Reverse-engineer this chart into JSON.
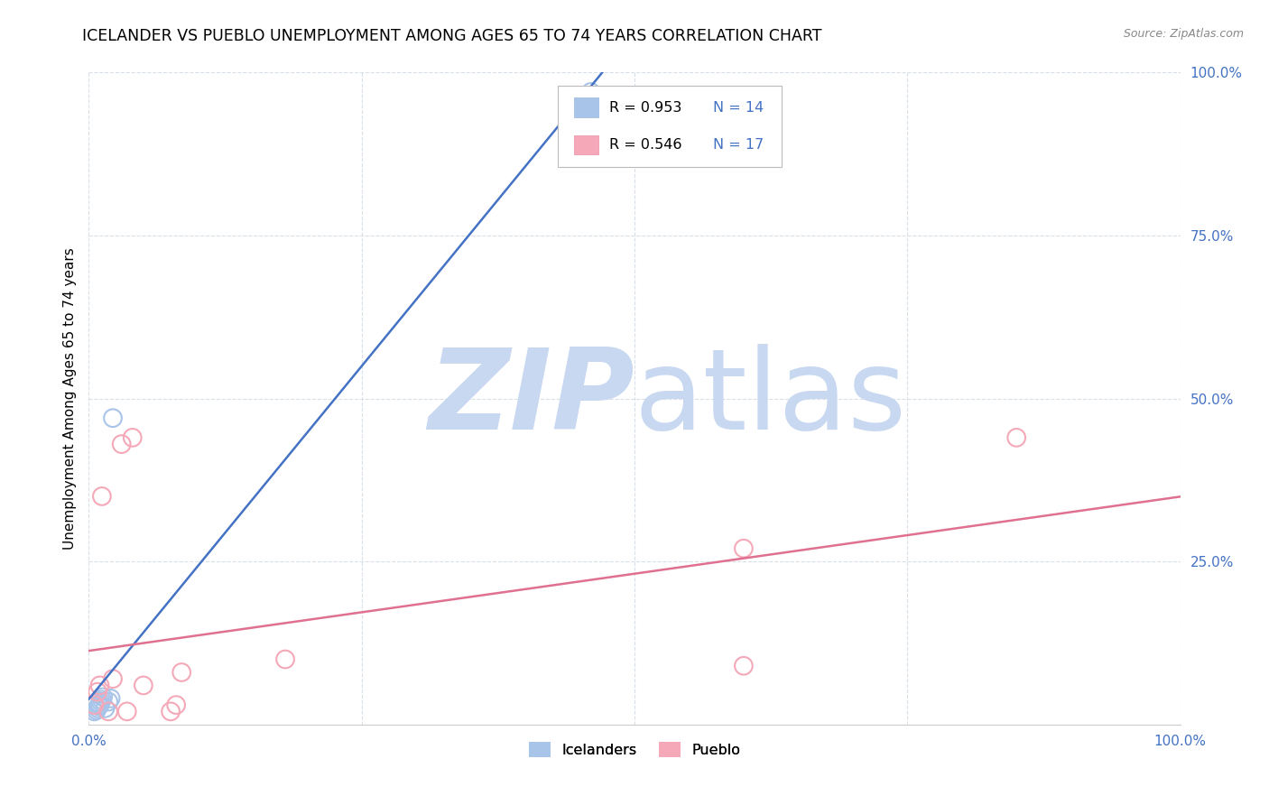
{
  "title": "ICELANDER VS PUEBLO UNEMPLOYMENT AMONG AGES 65 TO 74 YEARS CORRELATION CHART",
  "source": "Source: ZipAtlas.com",
  "ylabel": "Unemployment Among Ages 65 to 74 years",
  "xlim": [
    0.0,
    1.0
  ],
  "ylim": [
    0.0,
    1.0
  ],
  "xticks": [
    0.0,
    0.25,
    0.5,
    0.75,
    1.0
  ],
  "yticks": [
    0.0,
    0.25,
    0.5,
    0.75,
    1.0
  ],
  "xticklabels": [
    "0.0%",
    "",
    "",
    "",
    "100.0%"
  ],
  "yticklabels": [
    "",
    "25.0%",
    "50.0%",
    "75.0%",
    "100.0%"
  ],
  "icelander_color": "#a8c4e8",
  "pueblo_color": "#f4a8b8",
  "icelander_line_color": "#4472c4",
  "pueblo_line_color": "#e07090",
  "R_icelander": "0.953",
  "N_icelander": "14",
  "R_pueblo": "0.546",
  "N_pueblo": "17",
  "watermark_ZIP": "ZIP",
  "watermark_atlas": "atlas",
  "watermark_color_ZIP": "#c8d8f0",
  "watermark_color_atlas": "#c8d8f0",
  "icelander_x": [
    0.005,
    0.007,
    0.008,
    0.009,
    0.01,
    0.01,
    0.011,
    0.012,
    0.013,
    0.015,
    0.018,
    0.02,
    0.022,
    0.46
  ],
  "icelander_y": [
    0.02,
    0.022,
    0.025,
    0.028,
    0.03,
    0.032,
    0.035,
    0.038,
    0.042,
    0.025,
    0.035,
    0.04,
    0.47,
    0.97
  ],
  "pueblo_x": [
    0.005,
    0.008,
    0.01,
    0.012,
    0.018,
    0.022,
    0.03,
    0.035,
    0.04,
    0.05,
    0.075,
    0.08,
    0.085,
    0.18,
    0.6,
    0.6,
    0.85
  ],
  "pueblo_y": [
    0.03,
    0.05,
    0.06,
    0.35,
    0.02,
    0.07,
    0.43,
    0.02,
    0.44,
    0.06,
    0.02,
    0.03,
    0.08,
    0.1,
    0.27,
    0.09,
    0.44
  ],
  "grid_color": "#d8dfe8",
  "background_color": "#ffffff",
  "title_fontsize": 12.5,
  "axis_label_fontsize": 11,
  "tick_fontsize": 11,
  "tick_color": "#4472c4",
  "legend_text_color": "#4472c4"
}
